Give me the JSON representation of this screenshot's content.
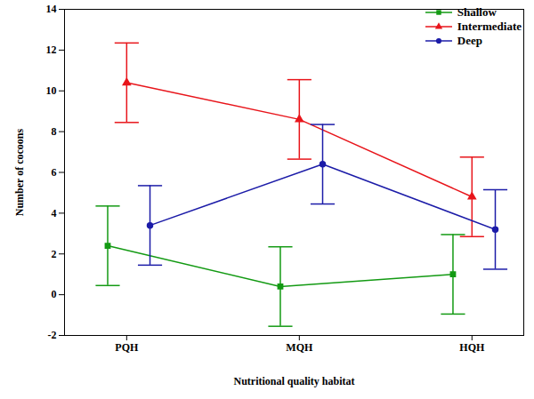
{
  "chart_data": {
    "type": "line",
    "x_label": "Nutritional quality habitat",
    "y_label": "Number of cocoons",
    "categories": [
      "PQH",
      "MQH",
      "HQH"
    ],
    "series": [
      {
        "name": "Shallow",
        "color": "#139a13",
        "marker": "square",
        "values": [
          2.4,
          0.4,
          1.0
        ],
        "error": [
          1.95,
          1.95,
          1.95
        ]
      },
      {
        "name": "Intermediate",
        "color": "#e8151b",
        "marker": "triangle",
        "values": [
          10.4,
          8.6,
          4.8
        ],
        "error": [
          1.95,
          1.95,
          1.95
        ]
      },
      {
        "name": "Deep",
        "color": "#1c1ca8",
        "marker": "circle",
        "values": [
          3.4,
          6.4,
          3.2
        ],
        "error": [
          1.95,
          1.95,
          1.95
        ]
      }
    ],
    "ylim": [
      -2,
      14
    ],
    "yticks": [
      -2,
      0,
      2,
      4,
      6,
      8,
      10,
      12,
      14
    ],
    "legend": "top-right"
  }
}
